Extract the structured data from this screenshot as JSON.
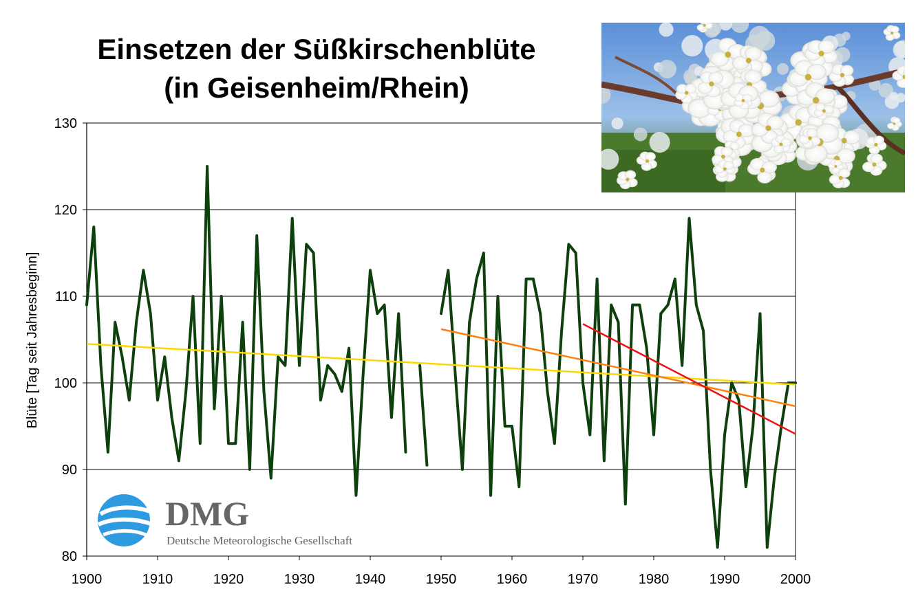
{
  "chart_data": {
    "type": "line",
    "title_lines": [
      "Einsetzen der Süßkirschenblüte",
      "(in Geisenheim/Rhein)"
    ],
    "xlabel": "",
    "ylabel": "Blüte [Tag seit Jahresbeginn]",
    "xlim": [
      1900,
      2000
    ],
    "ylim": [
      80,
      130
    ],
    "xticks": [
      1900,
      1910,
      1920,
      1930,
      1940,
      1950,
      1960,
      1970,
      1980,
      1990,
      2000
    ],
    "yticks": [
      80,
      90,
      100,
      110,
      120,
      130
    ],
    "grid": "horizontal",
    "series": [
      {
        "color": "#0d400d",
        "segments": [
          {
            "x": [
              1900,
              1901,
              1902,
              1903,
              1904,
              1905,
              1906,
              1907,
              1908,
              1909,
              1910,
              1911,
              1912,
              1913,
              1914,
              1915,
              1916,
              1917,
              1918,
              1919,
              1920,
              1921,
              1922,
              1923,
              1924,
              1925,
              1926,
              1927,
              1928,
              1929,
              1930,
              1931,
              1932,
              1933,
              1934,
              1935,
              1936,
              1937,
              1938,
              1939,
              1940,
              1941,
              1942,
              1943,
              1944,
              1945
            ],
            "y": [
              109,
              118,
              102,
              92,
              107,
              103,
              98,
              107,
              113,
              108,
              98,
              103,
              96,
              91,
              99,
              110,
              93,
              125,
              97,
              110,
              93,
              93,
              107,
              90,
              117,
              99,
              89,
              103,
              102,
              119,
              102,
              116,
              115,
              98,
              102,
              101,
              99,
              104,
              87,
              101,
              113,
              108,
              109,
              96,
              108,
              92
            ]
          },
          {
            "x": [
              1947,
              1948
            ],
            "y": [
              102,
              90.5
            ]
          },
          {
            "x": [
              1950,
              1951,
              1952,
              1953,
              1954,
              1955,
              1956,
              1957,
              1958,
              1959,
              1960,
              1961,
              1962,
              1963,
              1964,
              1965,
              1966,
              1967,
              1968,
              1969,
              1970,
              1971,
              1972,
              1973,
              1974,
              1975,
              1976,
              1977,
              1978,
              1979,
              1980,
              1981,
              1982,
              1983,
              1984,
              1985,
              1986,
              1987,
              1988,
              1989,
              1990,
              1991,
              1992,
              1993,
              1994,
              1995,
              1996,
              1997,
              1998,
              1999,
              2000
            ],
            "y": [
              108,
              113,
              101,
              90,
              107,
              112,
              115,
              87,
              110,
              95,
              95,
              88,
              112,
              112,
              108,
              99,
              93,
              106,
              116,
              115,
              100,
              94,
              112,
              91,
              109,
              107,
              86,
              109,
              109,
              104,
              94,
              108,
              109,
              112,
              102,
              119,
              109,
              106,
              90,
              81,
              94,
              100,
              98,
              88,
              95,
              108,
              81,
              89,
              95,
              100,
              100
            ]
          }
        ]
      }
    ],
    "trend_lines": [
      {
        "color": "#ffd700",
        "x": [
          1900,
          2000
        ],
        "y": [
          104.5,
          99.8
        ]
      },
      {
        "color": "#ff7f10",
        "x": [
          1950,
          2000
        ],
        "y": [
          106.2,
          97.3
        ]
      },
      {
        "color": "#ee1111",
        "x": [
          1970,
          2000
        ],
        "y": [
          106.8,
          94.1
        ]
      }
    ]
  },
  "logo": {
    "title": "DMG",
    "subtitle": "Deutsche Meteorologische Gesellschaft",
    "color": "#2e9ae0"
  },
  "photo": {
    "subject": "cherry-blossom-photo"
  }
}
